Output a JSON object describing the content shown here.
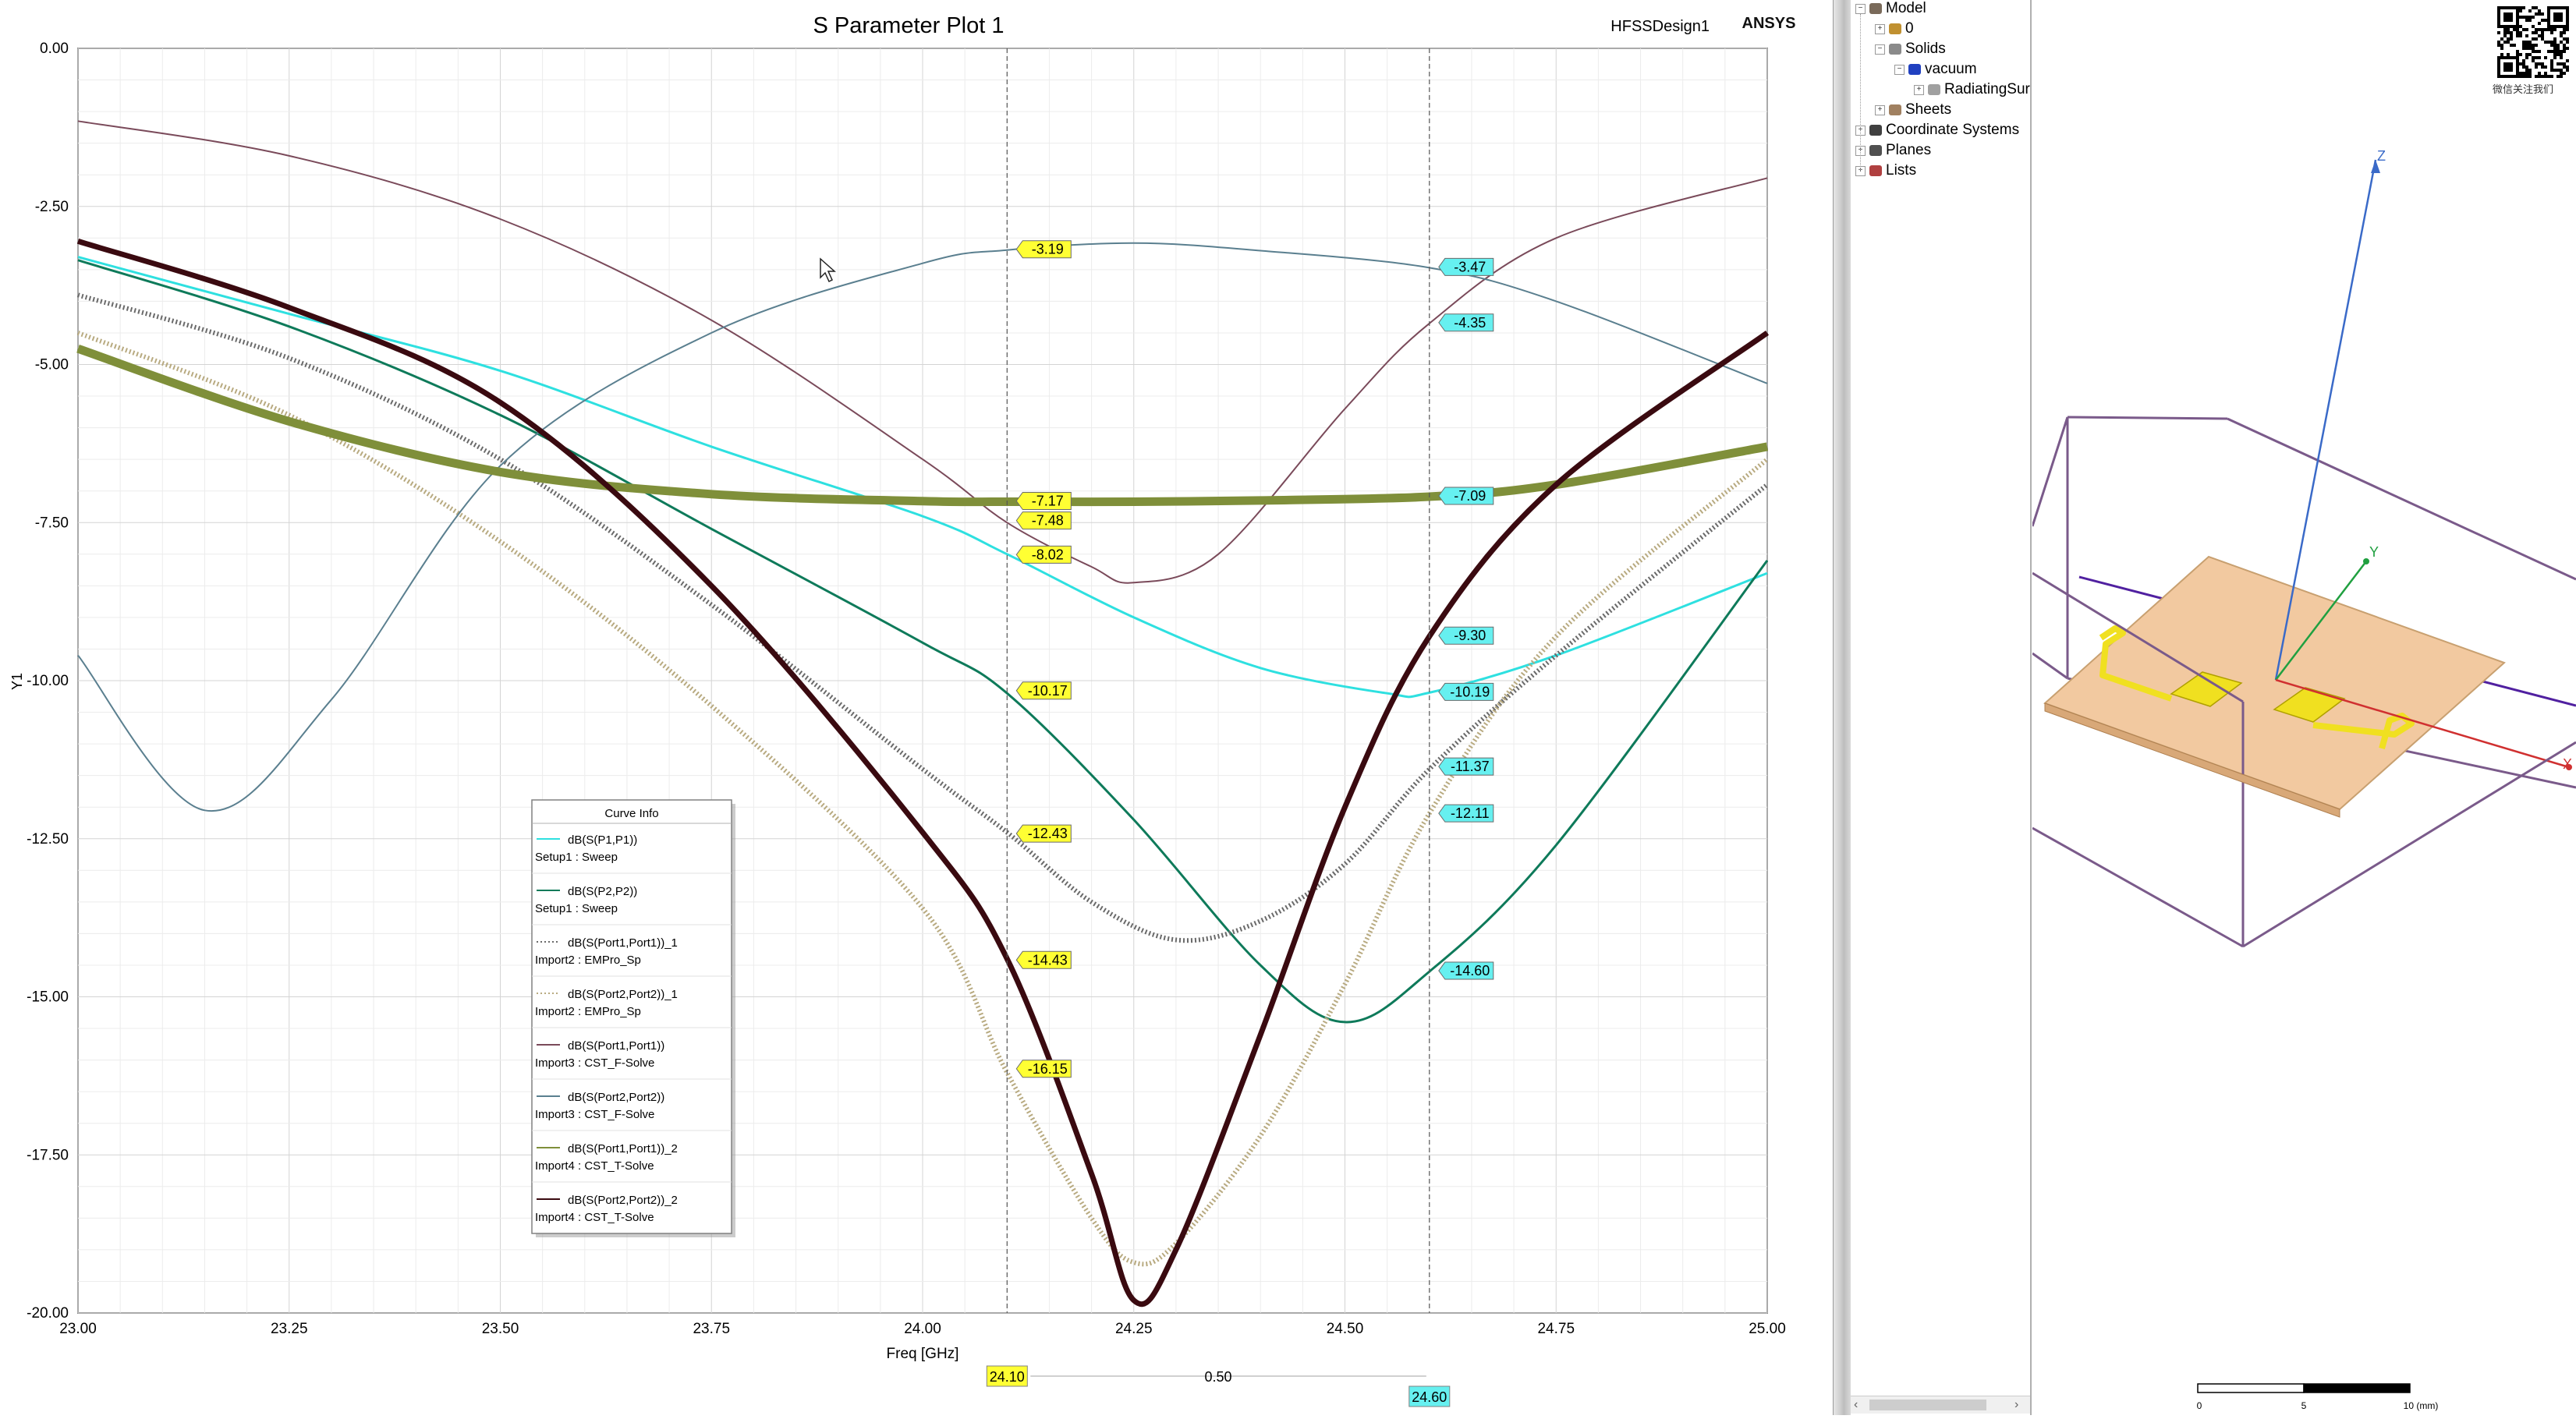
{
  "plot": {
    "title": "S Parameter Plot 1",
    "design": "HFSSDesign1",
    "brand": "ANSYS",
    "legend_title": "Curve Info",
    "legend": [
      {
        "line1": "dB(S(P1,P1))",
        "line2": "Setup1 : Sweep",
        "color": "#2ee0e0",
        "style": "solid"
      },
      {
        "line1": "dB(S(P2,P2))",
        "line2": "Setup1 : Sweep",
        "color": "#0e7a5a",
        "style": "solid"
      },
      {
        "line1": "dB(S(Port1,Port1))_1",
        "line2": "Import2 : EMPro_Sp",
        "color": "#6a6a6a",
        "style": "dotted"
      },
      {
        "line1": "dB(S(Port2,Port2))_1",
        "line2": "Import2 : EMPro_Sp",
        "color": "#b8aa80",
        "style": "dotted"
      },
      {
        "line1": "dB(S(Port1,Port1))",
        "line2": "Import3 : CST_F-Solve",
        "color": "#7a4a5a",
        "style": "solid"
      },
      {
        "line1": "dB(S(Port2,Port2))",
        "line2": "Import3 : CST_F-Solve",
        "color": "#5a7f8f",
        "style": "solid"
      },
      {
        "line1": "dB(S(Port1,Port1))_2",
        "line2": "Import4 : CST_T-Solve",
        "color": "#7f8f3a",
        "style": "solid"
      },
      {
        "line1": "dB(S(Port2,Port2))_2",
        "line2": "Import4 : CST_T-Solve",
        "color": "#3a0a10",
        "style": "solid"
      }
    ],
    "marker1_labels": [
      "-3.19",
      "-7.17",
      "-7.48",
      "-8.02",
      "-10.17",
      "-12.43",
      "-14.43",
      "-16.15"
    ],
    "marker2_labels": [
      "-3.47",
      "-4.35",
      "-7.09",
      "-9.30",
      "-10.19",
      "-11.37",
      "-12.11",
      "-14.60"
    ],
    "marker1_x": "24.10",
    "marker2_x": "24.60",
    "marker_delta": "0.50"
  },
  "chart_data": {
    "type": "line",
    "title": "S Parameter Plot 1",
    "xlabel": "Freq [GHz]",
    "ylabel": "Y1",
    "xlim": [
      23.0,
      25.0
    ],
    "ylim": [
      -20.0,
      0.0
    ],
    "x_ticks": [
      "23.00",
      "23.25",
      "23.50",
      "23.75",
      "24.00",
      "24.25",
      "24.50",
      "24.75",
      "25.00"
    ],
    "y_ticks": [
      "0.00",
      "-2.50",
      "-5.00",
      "-7.50",
      "-10.00",
      "-12.50",
      "-15.00",
      "-17.50",
      "-20.00"
    ],
    "grid": true,
    "legend_position": "lower-left",
    "markers_x": [
      24.1,
      24.6
    ],
    "series": [
      {
        "name": "dB(S(P1,P1)) Setup1 : Sweep",
        "color": "#2ee0e0",
        "width": 3,
        "dash": "",
        "x": [
          23.0,
          23.25,
          23.5,
          23.75,
          24.0,
          24.1,
          24.25,
          24.4,
          24.55,
          24.6,
          24.75,
          25.0
        ],
        "y": [
          -3.3,
          -4.2,
          -5.1,
          -6.3,
          -7.4,
          -8.0,
          -9.0,
          -9.8,
          -10.2,
          -10.19,
          -9.6,
          -8.3
        ]
      },
      {
        "name": "dB(S(P2,P2)) Setup1 : Sweep",
        "color": "#0e7a5a",
        "width": 3,
        "dash": "",
        "x": [
          23.0,
          23.25,
          23.5,
          23.75,
          24.0,
          24.1,
          24.25,
          24.4,
          24.5,
          24.6,
          24.75,
          25.0
        ],
        "y": [
          -3.35,
          -4.4,
          -5.8,
          -7.6,
          -9.4,
          -10.2,
          -12.2,
          -14.5,
          -15.4,
          -14.6,
          -12.6,
          -8.1
        ]
      },
      {
        "name": "dB(S(Port1,Port1))_1 Import2 : EMPro_Sp",
        "color": "#6a6a6a",
        "width": 6,
        "dash": "2,3",
        "x": [
          23.0,
          23.25,
          23.5,
          23.75,
          24.0,
          24.1,
          24.2,
          24.3,
          24.4,
          24.5,
          24.6,
          24.75,
          25.0
        ],
        "y": [
          -3.9,
          -4.9,
          -6.5,
          -8.8,
          -11.4,
          -12.4,
          -13.5,
          -14.1,
          -13.8,
          -12.9,
          -11.4,
          -9.6,
          -6.9
        ]
      },
      {
        "name": "dB(S(Port2,Port2))_1 Import2 : EMPro_Sp",
        "color": "#b8aa80",
        "width": 6,
        "dash": "2,3",
        "x": [
          23.0,
          23.25,
          23.5,
          23.75,
          24.0,
          24.1,
          24.2,
          24.25,
          24.3,
          24.4,
          24.5,
          24.6,
          24.75,
          25.0
        ],
        "y": [
          -4.5,
          -5.8,
          -7.8,
          -10.4,
          -13.6,
          -16.2,
          -18.5,
          -19.2,
          -18.9,
          -17.2,
          -14.8,
          -12.1,
          -9.3,
          -6.5
        ]
      },
      {
        "name": "dB(S(Port1,Port1)) Import3 : CST_F-Solve",
        "color": "#7a4a5a",
        "width": 2,
        "dash": "",
        "x": [
          23.0,
          23.25,
          23.5,
          23.75,
          24.0,
          24.1,
          24.2,
          24.25,
          24.35,
          24.5,
          24.6,
          24.75,
          25.0
        ],
        "y": [
          -1.15,
          -1.7,
          -2.7,
          -4.3,
          -6.5,
          -7.5,
          -8.2,
          -8.45,
          -8.0,
          -5.7,
          -4.35,
          -3.0,
          -2.05
        ]
      },
      {
        "name": "dB(S(Port2,Port2)) Import3 : CST_F-Solve",
        "color": "#5a7f8f",
        "width": 2,
        "dash": "",
        "x": [
          23.0,
          23.15,
          23.3,
          23.5,
          23.75,
          24.0,
          24.1,
          24.25,
          24.4,
          24.6,
          24.75,
          25.0
        ],
        "y": [
          -9.6,
          -12.05,
          -10.3,
          -6.6,
          -4.5,
          -3.4,
          -3.19,
          -3.08,
          -3.2,
          -3.47,
          -4.0,
          -5.3
        ]
      },
      {
        "name": "dB(S(Port1,Port1))_2 Import4 : CST_T-Solve",
        "color": "#7f8f3a",
        "width": 11,
        "dash": "",
        "x": [
          23.0,
          23.25,
          23.5,
          23.75,
          24.0,
          24.1,
          24.25,
          24.4,
          24.6,
          24.75,
          25.0
        ],
        "y": [
          -4.75,
          -5.9,
          -6.7,
          -7.05,
          -7.16,
          -7.17,
          -7.17,
          -7.15,
          -7.09,
          -6.9,
          -6.3
        ]
      },
      {
        "name": "dB(S(Port2,Port2))_2 Import4 : CST_T-Solve",
        "color": "#3a0a10",
        "width": 7,
        "dash": "",
        "x": [
          23.0,
          23.25,
          23.5,
          23.75,
          24.0,
          24.1,
          24.2,
          24.25,
          24.3,
          24.4,
          24.5,
          24.6,
          24.75,
          25.0
        ],
        "y": [
          -3.05,
          -4.1,
          -5.6,
          -8.5,
          -12.4,
          -14.4,
          -17.8,
          -19.8,
          -19.0,
          -15.6,
          -12.0,
          -9.3,
          -6.9,
          -4.5
        ]
      }
    ]
  },
  "tree": {
    "items": [
      {
        "label": "Model",
        "indent": 0
      },
      {
        "label": "0",
        "indent": 1
      },
      {
        "label": "Solids",
        "indent": 1
      },
      {
        "label": "vacuum",
        "indent": 2
      },
      {
        "label": "RadiatingSur",
        "indent": 3
      },
      {
        "label": "Sheets",
        "indent": 1
      },
      {
        "label": "Coordinate Systems",
        "indent": 0
      },
      {
        "label": "Planes",
        "indent": 0
      },
      {
        "label": "Lists",
        "indent": 0
      }
    ]
  },
  "view3d": {
    "axis_x": "X",
    "axis_y": "Y",
    "axis_z": "Z",
    "scale_ticks": [
      "0",
      "5",
      "10 (mm)"
    ],
    "qr_caption": "微信关注我们",
    "substrate_color": "#f2c9a0",
    "patch_color": "#f0e020",
    "box_color": "#7a5a8a"
  }
}
